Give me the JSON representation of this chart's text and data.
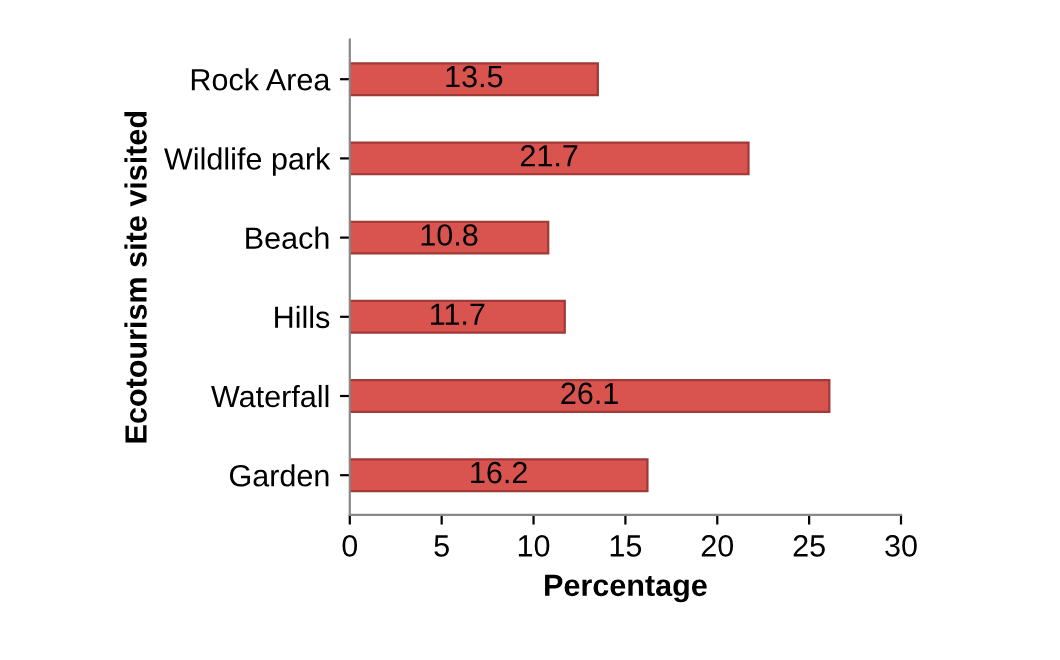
{
  "chart_data": {
    "type": "bar",
    "orientation": "horizontal",
    "xlabel": "Percentage",
    "ylabel": "Ecotourism site visited",
    "categories": [
      "Rock Area",
      "Wildlife park",
      "Beach",
      "Hills",
      "Waterfall",
      "Garden"
    ],
    "values": [
      13.5,
      21.7,
      10.8,
      11.7,
      26.1,
      16.2
    ],
    "color": "#d9534f",
    "xlim": [
      0,
      30
    ],
    "xticks": [
      0,
      5,
      10,
      15,
      20,
      25,
      30
    ],
    "data_labels": true,
    "grid": false,
    "legend": false
  }
}
